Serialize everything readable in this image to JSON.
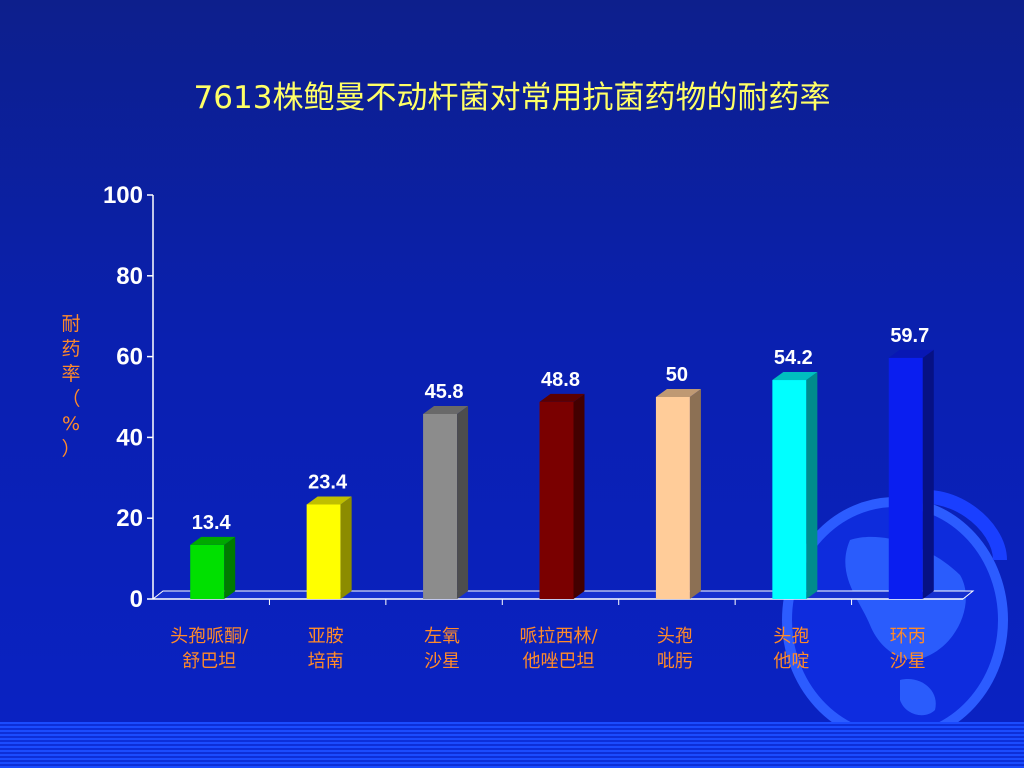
{
  "chart_data": {
    "type": "bar",
    "title": "7613株鲍曼不动杆菌对常用抗菌药物的耐药率",
    "ylabel": "耐药率（%）",
    "xlabel": "",
    "ylim": [
      0,
      100
    ],
    "yticks": [
      0,
      20,
      40,
      60,
      80,
      100
    ],
    "grid": false,
    "legend": "none",
    "categories": [
      [
        "头孢哌酮/",
        "舒巴坦"
      ],
      [
        "亚胺",
        "培南"
      ],
      [
        "左氧",
        "沙星"
      ],
      [
        "哌拉西林/",
        "他唑巴坦"
      ],
      [
        "头孢",
        "吡肟"
      ],
      [
        "头孢",
        "他啶"
      ],
      [
        "环丙",
        "沙星"
      ]
    ],
    "values": [
      13.4,
      23.4,
      45.8,
      48.8,
      50,
      54.2,
      59.7
    ],
    "value_labels": [
      "13.4",
      "23.4",
      "45.8",
      "48.8",
      "50",
      "54.2",
      "59.7"
    ],
    "colors": [
      "#00e000",
      "#ffff00",
      "#8c8c8c",
      "#7a0000",
      "#ffcc99",
      "#00ffff",
      "#0a1ef0"
    ]
  },
  "colors": {
    "title": "#ffff66",
    "category_label": "#ff8a2a",
    "background": "#0a20b0"
  }
}
